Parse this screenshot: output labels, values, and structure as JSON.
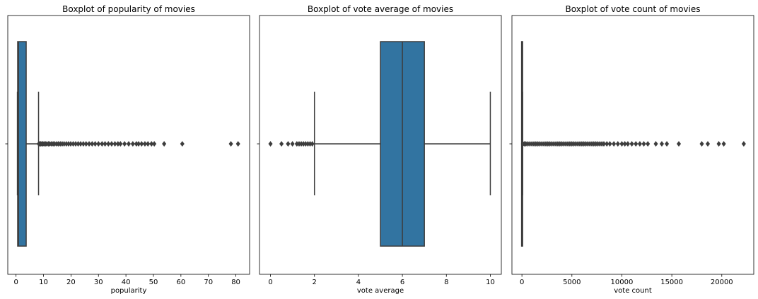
{
  "colors": {
    "box": "#3274a1",
    "edge": "#3d3d3d",
    "frame": "#000000"
  },
  "chart_data": [
    {
      "type": "boxplot",
      "title": "Boxplot of popularity of movies",
      "xlabel": "popularity",
      "xlim": [
        -3,
        85
      ],
      "ticks": [
        0,
        10,
        20,
        30,
        40,
        50,
        60,
        70,
        80
      ],
      "tick_labels": [
        "0",
        "10",
        "20",
        "30",
        "40",
        "50",
        "60",
        "70",
        "80"
      ],
      "stats": {
        "whisker_low": 0.5,
        "q1": 0.6,
        "median": 0.9,
        "q3": 3.7,
        "whisker_high": 8.2
      },
      "outliers": [
        8.3,
        8.6,
        9.0,
        9.4,
        9.8,
        10.2,
        10.7,
        11.2,
        11.8,
        12.3,
        12.9,
        13.5,
        14.1,
        14.8,
        15.4,
        16.1,
        16.8,
        17.5,
        18.3,
        19.1,
        19.9,
        20.8,
        21.7,
        22.6,
        23.5,
        24.5,
        25.5,
        26.6,
        27.7,
        28.8,
        30.0,
        31.3,
        32.4,
        33.6,
        34.8,
        36.0,
        37.1,
        38.0,
        39.5,
        41.0,
        42.5,
        43.8,
        44.6,
        45.7,
        46.9,
        48.0,
        49.3,
        50.3,
        53.9,
        60.5,
        78.2,
        80.8
      ]
    },
    {
      "type": "boxplot",
      "title": "Boxplot of vote average of movies",
      "xlabel": "vote average",
      "xlim": [
        -0.5,
        10.5
      ],
      "ticks": [
        0,
        2,
        4,
        6,
        8,
        10
      ],
      "tick_labels": [
        "0",
        "2",
        "4",
        "6",
        "8",
        "10"
      ],
      "stats": {
        "whisker_low": 2.0,
        "q1": 5.0,
        "median": 6.0,
        "q3": 7.0,
        "whisker_high": 10.0
      },
      "outliers": [
        0.0,
        0.5,
        0.8,
        1.0,
        1.2,
        1.3,
        1.4,
        1.5,
        1.6,
        1.7,
        1.8,
        1.9
      ]
    },
    {
      "type": "boxplot",
      "title": "Boxplot of vote count of movies",
      "xlabel": "vote count",
      "xlim": [
        -1000,
        23200
      ],
      "ticks": [
        0,
        5000,
        10000,
        15000,
        20000
      ],
      "tick_labels": [
        "0",
        "5000",
        "10000",
        "15000",
        "20000"
      ],
      "stats": {
        "whisker_low": 0,
        "q1": 3,
        "median": 10,
        "q3": 34,
        "whisker_high": 80
      },
      "outliers": [
        110,
        250,
        400,
        600,
        800,
        1000,
        1200,
        1400,
        1600,
        1800,
        2000,
        2200,
        2400,
        2600,
        2800,
        3000,
        3200,
        3400,
        3600,
        3800,
        4000,
        4200,
        4400,
        4600,
        4800,
        5000,
        5200,
        5400,
        5600,
        5800,
        6000,
        6200,
        6400,
        6600,
        6800,
        7000,
        7200,
        7400,
        7600,
        7800,
        8000,
        8200,
        8500,
        8800,
        9200,
        9600,
        10000,
        10300,
        10600,
        11000,
        11400,
        11800,
        12200,
        12600,
        13400,
        14000,
        14500,
        15700,
        18000,
        18600,
        19700,
        20200,
        22200
      ]
    }
  ]
}
